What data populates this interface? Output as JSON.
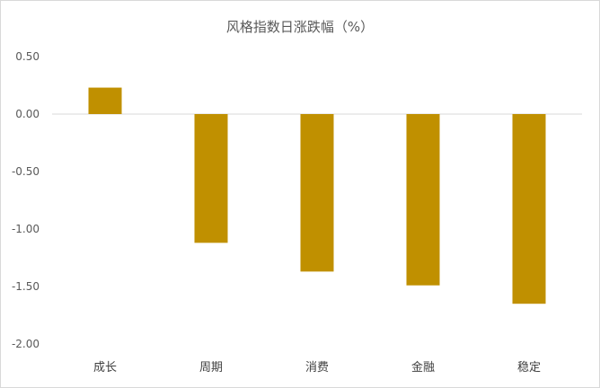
{
  "chart_data": {
    "type": "bar",
    "title": "风格指数日涨跌幅（%）",
    "categories": [
      "成长",
      "周期",
      "消费",
      "金融",
      "稳定"
    ],
    "values": [
      0.23,
      -1.12,
      -1.37,
      -1.49,
      -1.65
    ],
    "ylim": [
      -2.0,
      0.5
    ],
    "yticks": [
      "0.50",
      "0.00",
      "-0.50",
      "-1.00",
      "-1.50",
      "-2.00"
    ],
    "grid": false,
    "legend": "none",
    "bar_color": "#C09000",
    "axis_color": "#d9d9d9"
  }
}
